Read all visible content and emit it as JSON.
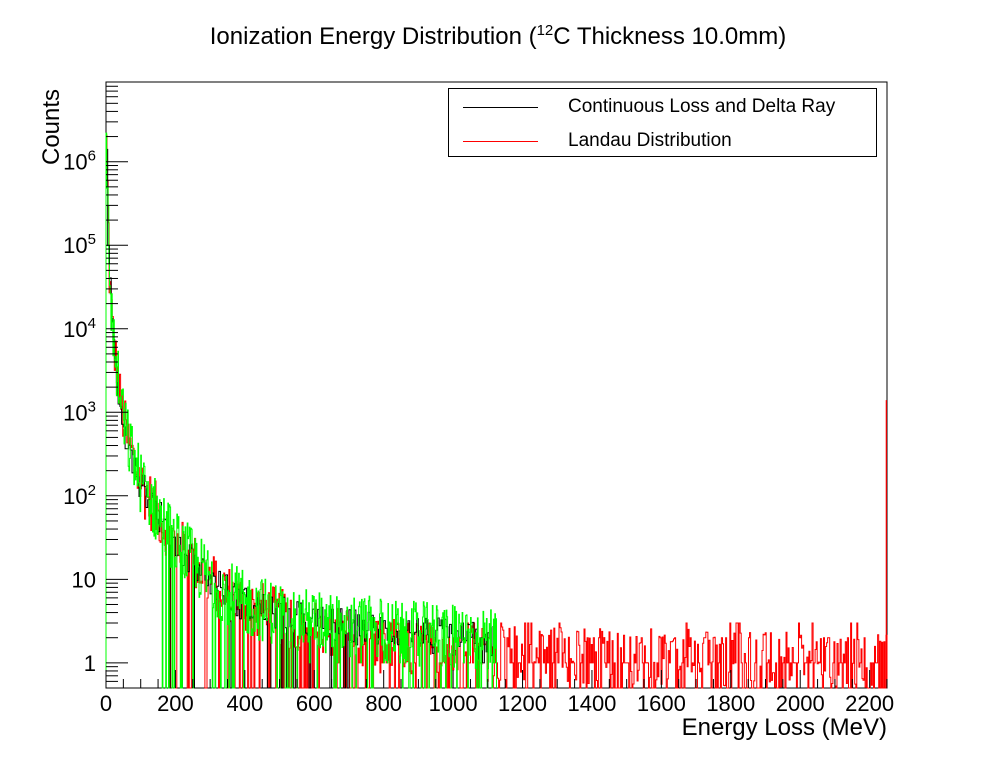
{
  "chart_data": {
    "type": "histogram",
    "title_main": "Ionization Energy Distribution (",
    "title_sup": "12",
    "title_rest": "C Thickness 10.0mm)",
    "xlabel": "Energy Loss (MeV)",
    "ylabel": "Counts",
    "xlim": [
      0,
      2250
    ],
    "ylim": [
      0.5,
      9000000
    ],
    "y_scale": "log",
    "x_ticks": [
      0,
      200,
      400,
      600,
      800,
      1000,
      1200,
      1400,
      1600,
      1800,
      2000,
      2200
    ],
    "x_tick_labels": [
      "0",
      "200",
      "400",
      "600",
      "800",
      "1000",
      "1200",
      "1400",
      "1600",
      "1800",
      "2000",
      "2200"
    ],
    "y_ticks": [
      {
        "value": 1,
        "base": "1",
        "exp": ""
      },
      {
        "value": 10,
        "base": "10",
        "exp": ""
      },
      {
        "value": 100,
        "base": "10",
        "exp": "2"
      },
      {
        "value": 1000,
        "base": "10",
        "exp": "3"
      },
      {
        "value": 10000,
        "base": "10",
        "exp": "4"
      },
      {
        "value": 100000,
        "base": "10",
        "exp": "5"
      },
      {
        "value": 1000000,
        "base": "10",
        "exp": "6"
      }
    ],
    "legend_position": "top-right",
    "series": [
      {
        "name": "Continuous Loss and Delta Ray",
        "color": "#000000",
        "description": "drawn almost entirely underneath the green histogram"
      },
      {
        "name": "Landau Distribution",
        "color": "#ff0000",
        "shape_points": [
          [
            0,
            3000000
          ],
          [
            10,
            50000
          ],
          [
            20,
            8000
          ],
          [
            40,
            1500
          ],
          [
            60,
            500
          ],
          [
            100,
            140
          ],
          [
            150,
            60
          ],
          [
            200,
            28
          ],
          [
            300,
            10
          ],
          [
            400,
            5
          ],
          [
            600,
            2.5
          ],
          [
            800,
            1.6
          ],
          [
            1100,
            1.3
          ],
          [
            2250,
            1
          ]
        ],
        "end_spike": {
          "x": 2248,
          "y": 1400
        }
      },
      {
        "name": "",
        "color": "#00ff00",
        "shape_points": [
          [
            0,
            3000000
          ],
          [
            10,
            50000
          ],
          [
            20,
            8000
          ],
          [
            40,
            1500
          ],
          [
            60,
            500
          ],
          [
            100,
            150
          ],
          [
            150,
            60
          ],
          [
            200,
            28
          ],
          [
            300,
            10
          ],
          [
            400,
            5
          ],
          [
            600,
            3
          ],
          [
            800,
            2.5
          ],
          [
            1000,
            2
          ],
          [
            1125,
            1.8
          ]
        ],
        "x_end": 1125
      }
    ]
  }
}
